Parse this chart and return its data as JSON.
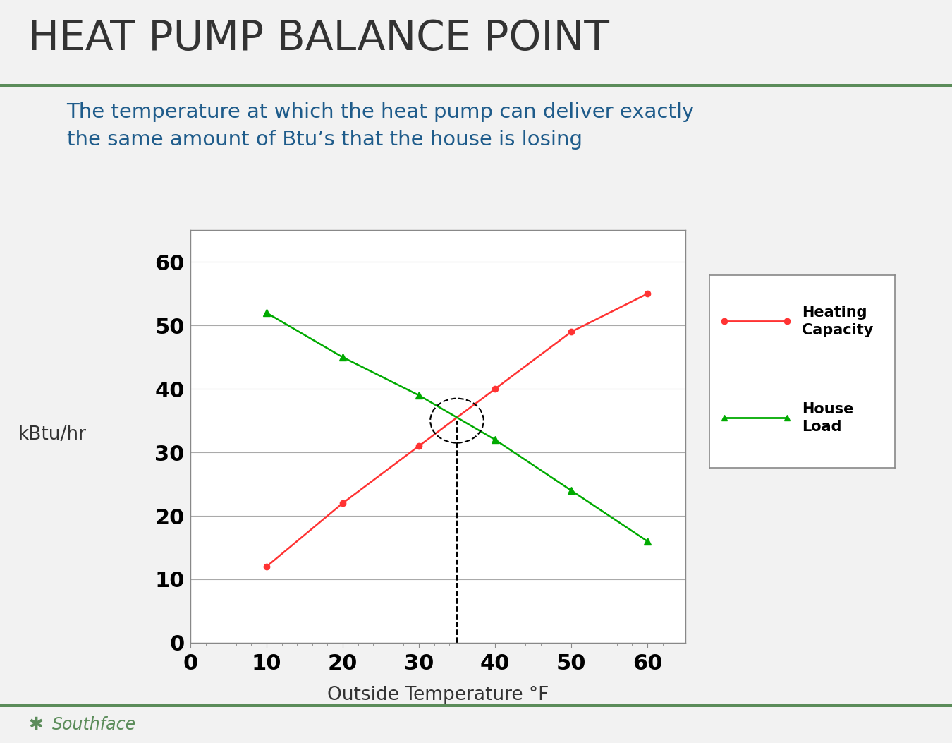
{
  "title": "HEAT PUMP BALANCE POINT",
  "subtitle": "The temperature at which the heat pump can deliver exactly\nthe same amount of Btu’s that the house is losing",
  "xlabel": "Outside Temperature °F",
  "ylabel": "kBtu/hr",
  "title_color": "#333333",
  "subtitle_color": "#1F5C8B",
  "xlabel_color": "#333333",
  "ylabel_color": "#333333",
  "background_color": "#F2F2F2",
  "plot_bg_color": "#FFFFFF",
  "heating_capacity": {
    "x": [
      10,
      20,
      30,
      40,
      50,
      60
    ],
    "y": [
      12,
      22,
      31,
      40,
      49,
      55
    ],
    "color": "#FF3333",
    "marker": "o",
    "label": "Heating\nCapacity",
    "linewidth": 1.8,
    "markersize": 6
  },
  "house_load": {
    "x": [
      10,
      20,
      30,
      40,
      50,
      60
    ],
    "y": [
      52,
      45,
      39,
      32,
      24,
      16
    ],
    "color": "#00AA00",
    "marker": "^",
    "label": "House\nLoad",
    "linewidth": 1.8,
    "markersize": 7
  },
  "balance_point_x": 35,
  "balance_point_y": 35,
  "xlim": [
    0,
    65
  ],
  "ylim": [
    0,
    65
  ],
  "xticks": [
    0,
    10,
    20,
    30,
    40,
    50,
    60
  ],
  "yticks": [
    0,
    10,
    20,
    30,
    40,
    50,
    60
  ],
  "ytick_labels": [
    "0",
    "10",
    "20",
    "30",
    "40",
    "50",
    "60"
  ],
  "xtick_labels": [
    "0",
    "10",
    "20",
    "30",
    "40",
    "50",
    "60"
  ],
  "grid_color": "#AAAAAA",
  "bar_color": "#5B8C5A",
  "southface_text": "  Southface",
  "southface_color": "#5B8C5A",
  "legend_fontsize": 15,
  "title_fontsize": 42,
  "subtitle_fontsize": 21,
  "axis_label_fontsize": 19,
  "tick_fontsize": 22,
  "ylabel_fontsize": 19,
  "figsize": [
    13.5,
    10.53
  ],
  "dpi": 100
}
